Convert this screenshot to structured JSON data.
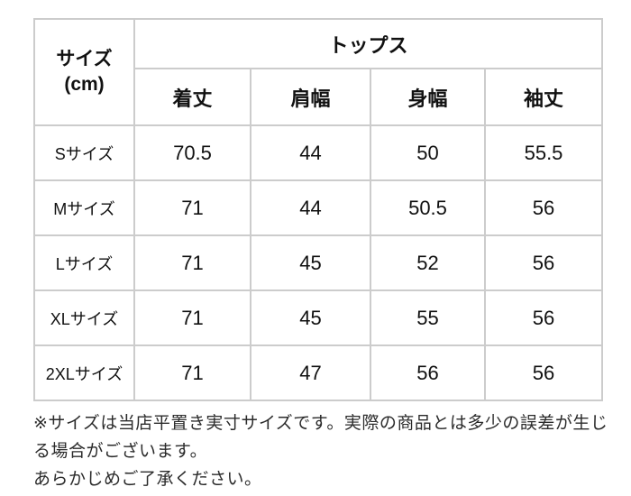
{
  "table": {
    "corner_header": {
      "line1": "サイズ",
      "line2": "(cm)"
    },
    "group_header": "トップス",
    "columns": [
      "着丈",
      "肩幅",
      "身幅",
      "袖丈"
    ],
    "rows": [
      {
        "label": "Sサイズ",
        "values": [
          "70.5",
          "44",
          "50",
          "55.5"
        ]
      },
      {
        "label": "Mサイズ",
        "values": [
          "71",
          "44",
          "50.5",
          "56"
        ]
      },
      {
        "label": "Lサイズ",
        "values": [
          "71",
          "45",
          "52",
          "56"
        ]
      },
      {
        "label": "XLサイズ",
        "values": [
          "71",
          "45",
          "55",
          "56"
        ]
      },
      {
        "label": "2XLサイズ",
        "values": [
          "71",
          "47",
          "56",
          "56"
        ]
      }
    ],
    "border_color": "#cccccc"
  },
  "notes": {
    "line1": "※サイズは当店平置き実寸サイズです。実際の商品とは多少の誤差が生じ",
    "line2": "る場合がございます。",
    "line3": "あらかじめご了承ください。"
  }
}
